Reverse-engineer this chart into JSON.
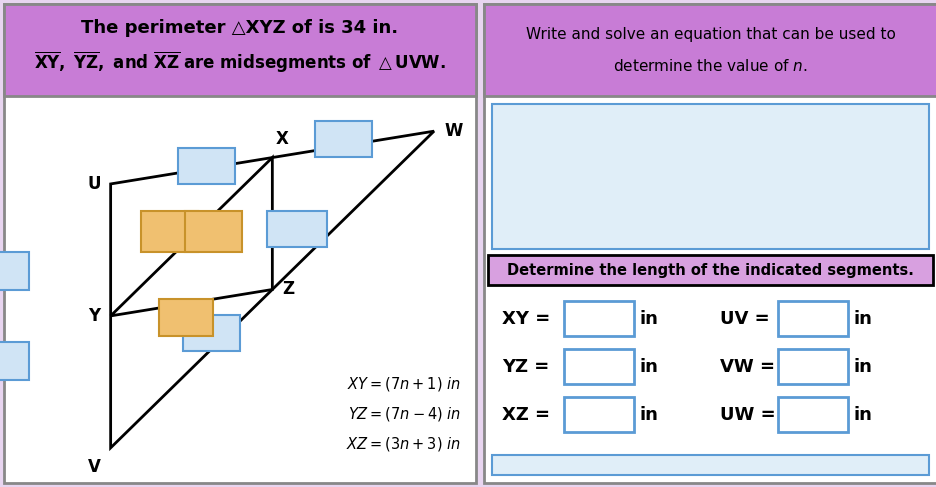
{
  "bg_color": "#e8d5f0",
  "header_bg": "#c87cd6",
  "header_border": "#888888",
  "white": "#ffffff",
  "panel_border": "#888888",
  "box_blue_fill": "#d0e4f5",
  "box_blue_edge": "#5b9bd5",
  "box_orange_fill": "#f0c070",
  "box_orange_edge": "#c8922a",
  "det_bg": "#d8a0e0",
  "ans_bg": "#e0eef8",
  "ans_edge": "#5b9bd5",
  "black": "#000000",
  "left_header_line1": "The perimeter △XYZ of is 34 in.",
  "left_header_line2_pre": "XY , YZ , and XZ are midsegments of △UVW.",
  "right_header_line1": "Write and solve an equation that can be used to",
  "right_header_line2": "determine the value of n.",
  "det_label": "Determine the length of the indicated segments.",
  "eq1": "XY = (7n + 1) in",
  "eq2": "YZ = (7n − 4) in",
  "eq3": "XZ = (3n + 3) in",
  "left_labels": [
    "XY =",
    "YZ =",
    "XZ ="
  ],
  "right_labels": [
    "UV =",
    "VW =",
    "UW ="
  ],
  "figsize": [
    9.37,
    4.87
  ],
  "dpi": 100
}
